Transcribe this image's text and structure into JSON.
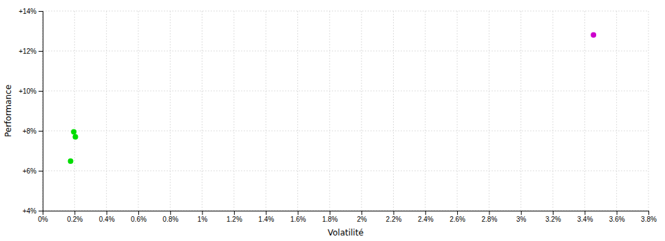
{
  "chart_data": {
    "type": "scatter",
    "xlabel": "Volatilité",
    "ylabel": "Performance",
    "x": [
      0.00195,
      0.00205,
      0.00175,
      0.03455
    ],
    "values": [
      0.0795,
      0.077,
      0.0648,
      0.128
    ],
    "colors": [
      "#00dd00",
      "#00dd00",
      "#00dd00",
      "#cc00cc"
    ],
    "xlim": [
      0.0,
      0.038
    ],
    "ylim": [
      0.04,
      0.14
    ],
    "xticks": [
      {
        "value": 0.0,
        "label": "0%"
      },
      {
        "value": 0.002,
        "label": "0.2%"
      },
      {
        "value": 0.004,
        "label": "0.4%"
      },
      {
        "value": 0.006,
        "label": "0.6%"
      },
      {
        "value": 0.008,
        "label": "0.8%"
      },
      {
        "value": 0.01,
        "label": "1%"
      },
      {
        "value": 0.012,
        "label": "1.2%"
      },
      {
        "value": 0.014,
        "label": "1.4%"
      },
      {
        "value": 0.016,
        "label": "1.6%"
      },
      {
        "value": 0.018,
        "label": "1.8%"
      },
      {
        "value": 0.02,
        "label": "2%"
      },
      {
        "value": 0.022,
        "label": "2.2%"
      },
      {
        "value": 0.024,
        "label": "2.4%"
      },
      {
        "value": 0.026,
        "label": "2.6%"
      },
      {
        "value": 0.028,
        "label": "2.8%"
      },
      {
        "value": 0.03,
        "label": "3%"
      },
      {
        "value": 0.032,
        "label": "3.2%"
      },
      {
        "value": 0.034,
        "label": "3.4%"
      },
      {
        "value": 0.036,
        "label": "3.6%"
      },
      {
        "value": 0.038,
        "label": "3.8%"
      }
    ],
    "yticks": [
      {
        "value": 0.04,
        "label": "+4%"
      },
      {
        "value": 0.06,
        "label": "+6%"
      },
      {
        "value": 0.08,
        "label": "+8%"
      },
      {
        "value": 0.1,
        "label": "+10%"
      },
      {
        "value": 0.12,
        "label": "+12%"
      },
      {
        "value": 0.14,
        "label": "+14%"
      }
    ],
    "grid": true
  }
}
